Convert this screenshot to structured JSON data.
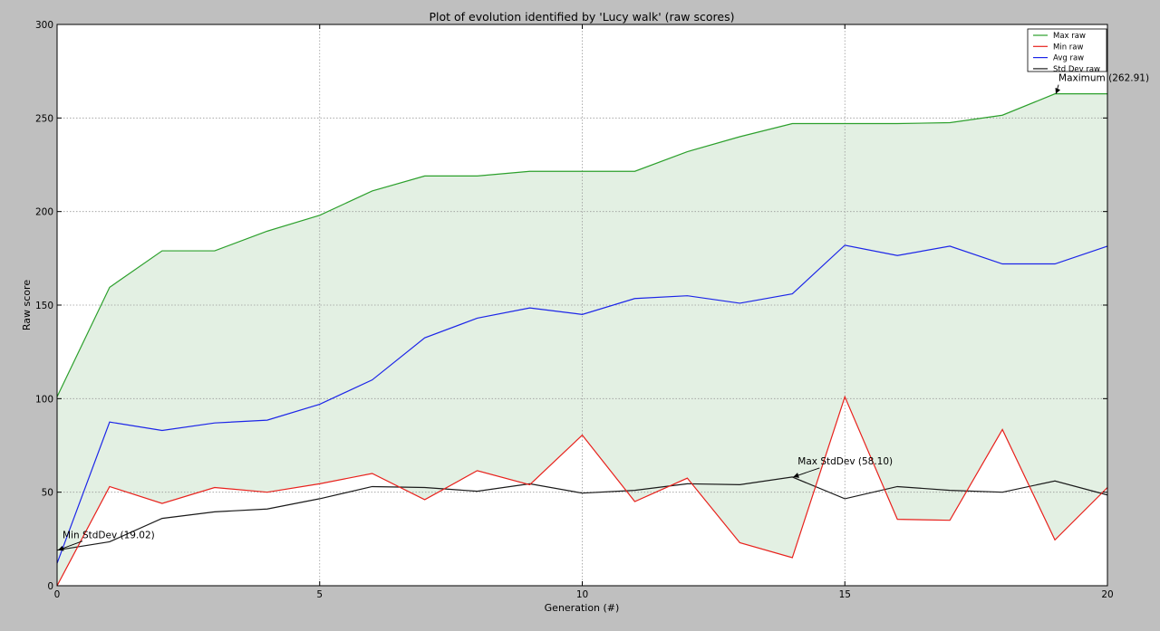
{
  "colors": {
    "figure_bg": "#bfbfbf",
    "plot_bg": "#ffffff",
    "fill": "#e3f0e3",
    "grid": "#9a9a9a",
    "max": "#2ca02c",
    "min": "#e8211c",
    "avg": "#1c25e8",
    "std": "#1a1a1a"
  },
  "chart_data": {
    "type": "line",
    "title": "Plot of evolution identified by 'Lucy walk' (raw scores)",
    "xlabel": "Generation (#)",
    "ylabel": "Raw score",
    "xlim": [
      0,
      20
    ],
    "ylim": [
      0,
      300
    ],
    "xticks": [
      0,
      5,
      10,
      15,
      20
    ],
    "yticks": [
      0,
      50,
      100,
      150,
      200,
      250,
      300
    ],
    "grid": true,
    "legend_position": "top-right",
    "x": [
      0,
      1,
      2,
      3,
      4,
      5,
      6,
      7,
      8,
      9,
      10,
      11,
      12,
      13,
      14,
      15,
      16,
      17,
      18,
      19,
      20
    ],
    "series": [
      {
        "name": "Max raw",
        "color": "#2ca02c",
        "values": [
          101.0,
          159.5,
          179.0,
          179.0,
          189.5,
          198.0,
          211.0,
          219.0,
          219.0,
          221.5,
          221.5,
          221.5,
          232.0,
          240.0,
          247.0,
          247.0,
          247.0,
          247.5,
          251.5,
          262.91,
          262.91
        ]
      },
      {
        "name": "Min raw",
        "color": "#e8211c",
        "values": [
          0.0,
          53.0,
          44.0,
          52.5,
          50.0,
          54.5,
          60.0,
          46.0,
          61.5,
          54.0,
          80.5,
          45.0,
          57.5,
          23.0,
          15.0,
          101.0,
          35.5,
          35.0,
          83.5,
          24.5,
          52.5
        ]
      },
      {
        "name": "Avg raw",
        "color": "#1c25e8",
        "values": [
          12.0,
          87.5,
          83.0,
          87.0,
          88.5,
          97.0,
          110.0,
          132.5,
          143.0,
          148.5,
          145.0,
          153.5,
          155.0,
          151.0,
          156.0,
          182.0,
          176.5,
          181.5,
          172.0,
          172.0,
          181.5
        ]
      },
      {
        "name": "Std Dev raw",
        "color": "#1a1a1a",
        "values": [
          19.02,
          23.5,
          36.0,
          39.5,
          41.0,
          46.5,
          53.0,
          52.5,
          50.5,
          54.5,
          49.5,
          51.0,
          54.5,
          54.0,
          58.1,
          46.5,
          53.0,
          51.0,
          50.0,
          56.0,
          48.5
        ]
      }
    ],
    "fill_between": [
      "Max raw",
      "Min raw"
    ],
    "annotations": [
      {
        "text": "Maximum (262.91)",
        "x": 19,
        "y": 262.91
      },
      {
        "text": "Max StdDev (58.10)",
        "x": 14,
        "y": 58.1
      },
      {
        "text": "Min StdDev (19.02)",
        "x": 0,
        "y": 19.02
      }
    ]
  }
}
